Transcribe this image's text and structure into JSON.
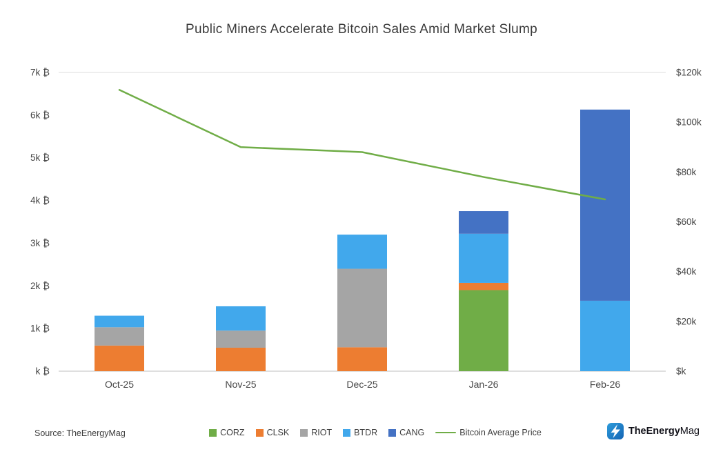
{
  "title": "Public Miners Accelerate Bitcoin Sales Amid Market Slump",
  "source": "Source: TheEnergyMag",
  "brand": {
    "bold": "TheEnergy",
    "regular": "Mag"
  },
  "chart_data": {
    "type": "bar",
    "subtype": "stacked-bars-with-line-overlay",
    "title": "Public Miners Accelerate Bitcoin Sales Amid Market Slump",
    "categories": [
      "Oct-25",
      "Nov-25",
      "Dec-25",
      "Jan-26",
      "Feb-26"
    ],
    "series": [
      {
        "name": "CORZ",
        "color": "#70AD47",
        "values": [
          0,
          0,
          0,
          1900,
          0
        ]
      },
      {
        "name": "CLSK",
        "color": "#ED7D31",
        "values": [
          600,
          550,
          560,
          170,
          0
        ]
      },
      {
        "name": "RIOT",
        "color": "#A5A5A5",
        "values": [
          430,
          400,
          1840,
          0,
          0
        ]
      },
      {
        "name": "BTDR",
        "color": "#41A8EC",
        "values": [
          270,
          570,
          800,
          1150,
          1650
        ]
      },
      {
        "name": "CANG",
        "color": "#4472C4",
        "values": [
          0,
          0,
          0,
          530,
          4480
        ]
      }
    ],
    "line_series": {
      "name": "Bitcoin Average Price",
      "color": "#70AD47",
      "axis": "right",
      "values": [
        113000,
        90000,
        88000,
        78000,
        69000
      ]
    },
    "left_axis": {
      "label": "Bitcoin sold (k BTC)",
      "min": 0,
      "max": 7000,
      "step": 1000,
      "tick_labels": [
        "k ₿",
        "1k ₿",
        "2k ₿",
        "3k ₿",
        "4k ₿",
        "5k ₿",
        "6k ₿",
        "7k ₿"
      ]
    },
    "right_axis": {
      "label": "Bitcoin average price (USD)",
      "min": 0,
      "max": 120000,
      "step": 20000,
      "tick_labels": [
        "$k",
        "$20k",
        "$40k",
        "$60k",
        "$80k",
        "$100k",
        "$120k"
      ]
    },
    "grid": "top-line-only",
    "legend_position": "bottom"
  }
}
